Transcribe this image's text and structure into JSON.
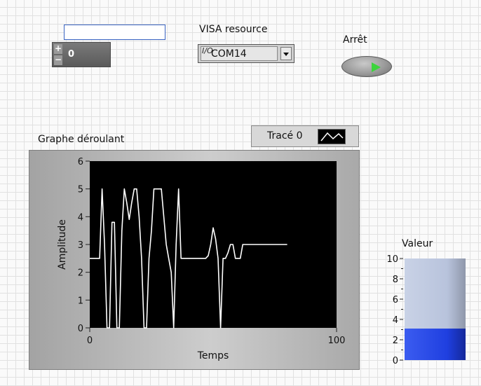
{
  "string_control": {
    "value": ""
  },
  "numeric_control": {
    "value": "0",
    "increment_symbol": "+",
    "decrement_symbol": "−"
  },
  "visa": {
    "label": "VISA resource",
    "io_symbol": "I/O",
    "value": "COM14"
  },
  "stop": {
    "label": "Arrêt"
  },
  "legend": {
    "label": "Tracé 0"
  },
  "chart": {
    "label": "Graphe déroulant"
  },
  "tank": {
    "label": "Valeur"
  },
  "colors": {
    "plot_bg": "#000000",
    "trace": "#ffffff",
    "tank_fill": "#1f3fe0",
    "tank_empty": "#b8c3dc",
    "stop_led": "#3dd43d"
  },
  "chart_data": {
    "type": "line",
    "xlabel": "Temps",
    "ylabel": "Amplitude",
    "xlim": [
      0,
      100
    ],
    "ylim": [
      0,
      6
    ],
    "x_ticks": [
      0,
      100
    ],
    "y_ticks": [
      0,
      1,
      2,
      3,
      4,
      5,
      6
    ],
    "grid": false,
    "series": [
      {
        "x": [
          0,
          3,
          4,
          5,
          6,
          7,
          8,
          9,
          10,
          11,
          12,
          13,
          14,
          15,
          16,
          17,
          18,
          19,
          20,
          21,
          22,
          23,
          24,
          25,
          26,
          27,
          28,
          29,
          30,
          31,
          32,
          33,
          34,
          35,
          36,
          37,
          38,
          39,
          40,
          41,
          42,
          43,
          44,
          45,
          46,
          47,
          48,
          49,
          50,
          51,
          52,
          53,
          54,
          55,
          56,
          57,
          58,
          59,
          60,
          61,
          62,
          63,
          64,
          65,
          66,
          67,
          68,
          69,
          70,
          71,
          72,
          73,
          74,
          75,
          76,
          77,
          78,
          79,
          80
        ],
        "y": [
          2.5,
          2.5,
          2.5,
          5.0,
          3.0,
          0.0,
          0.0,
          3.8,
          3.8,
          0.0,
          0.0,
          3.5,
          5.0,
          4.5,
          3.9,
          4.5,
          5.0,
          5.0,
          4.0,
          2.5,
          0.0,
          0.0,
          2.5,
          3.5,
          5.0,
          5.0,
          5.0,
          5.0,
          4.0,
          3.0,
          2.5,
          2.0,
          0.0,
          3.0,
          5.0,
          2.5,
          2.5,
          2.5,
          2.5,
          2.5,
          2.5,
          2.5,
          2.5,
          2.5,
          2.5,
          2.5,
          2.6,
          3.0,
          3.6,
          3.2,
          2.5,
          0.0,
          2.5,
          2.5,
          2.7,
          3.0,
          3.0,
          2.5,
          2.5,
          2.5,
          3.0,
          3.0,
          3.0,
          3.0,
          3.0,
          3.0,
          3.0,
          3.0,
          3.0,
          3.0,
          3.0,
          3.0,
          3.0,
          3.0,
          3.0,
          3.0,
          3.0,
          3.0,
          3.0
        ]
      }
    ]
  },
  "tank_data": {
    "type": "bar",
    "value": 3.1,
    "ylim": [
      0,
      10
    ],
    "y_ticks": [
      0,
      2,
      4,
      6,
      8,
      10
    ]
  }
}
